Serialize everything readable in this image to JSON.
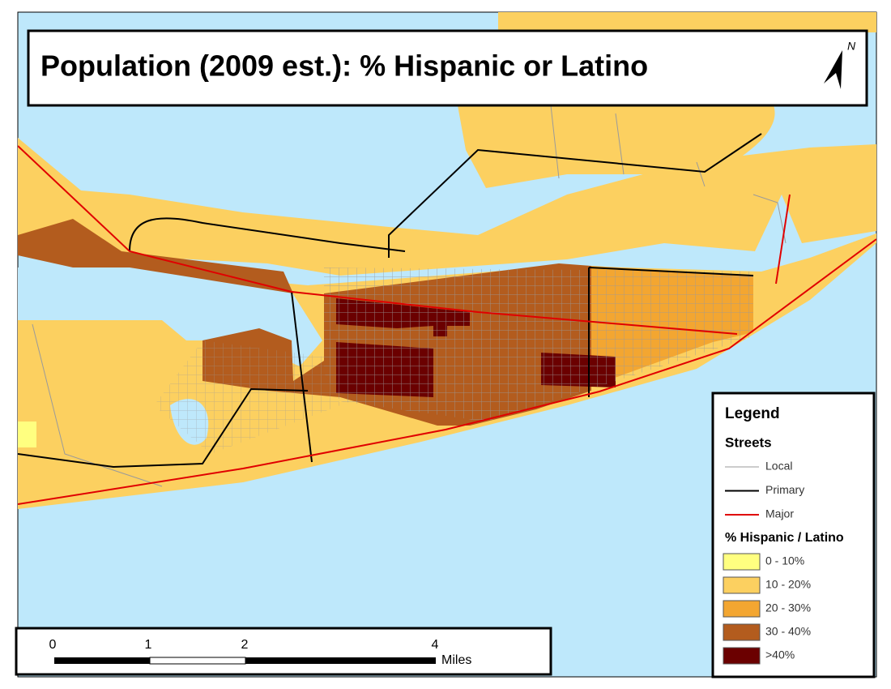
{
  "title": "Population (2009 est.): % Hispanic or Latino",
  "north_arrow": "N",
  "legend": {
    "title": "Legend",
    "streets": {
      "heading": "Streets",
      "items": [
        {
          "label": "Local",
          "color": "#9a9a9a"
        },
        {
          "label": "Primary",
          "color": "#000000"
        },
        {
          "label": "Major",
          "color": "#e00000"
        }
      ]
    },
    "classes": {
      "heading": "% Hispanic / Latino",
      "items": [
        {
          "label": "0 - 10%",
          "color": "#ffff80"
        },
        {
          "label": "10 - 20%",
          "color": "#fcd060"
        },
        {
          "label": "20 - 30%",
          "color": "#f3a631"
        },
        {
          "label": "30 - 40%",
          "color": "#b35c1e"
        },
        {
          "label": ">40%",
          "color": "#6b0000"
        }
      ]
    }
  },
  "scale_bar": {
    "ticks": [
      "0",
      "1",
      "2",
      "4"
    ],
    "unit": "Miles"
  }
}
